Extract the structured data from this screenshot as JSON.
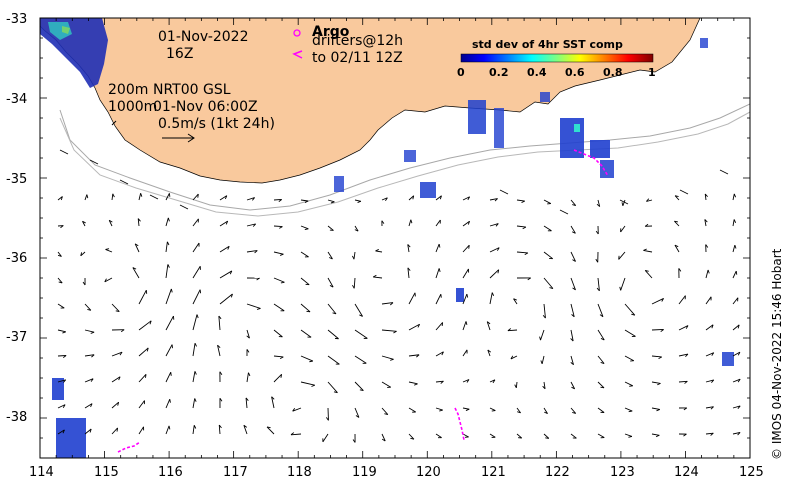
{
  "map": {
    "date": "01-Nov-2022",
    "hour": "16Z",
    "legend_argo_title": "Argo",
    "legend_drifters": "drifters@12h",
    "legend_drifters_to": "to 02/11 12Z",
    "contour_200m": "200m",
    "contour_1000m": "1000m",
    "product": "NRT00 GSL",
    "product_time": "01-Nov 06:00Z",
    "scale_label": "0.5m/s (1kt 24h)",
    "colorbar_title": "std dev of 4hr SST comp",
    "colorbar_ticks": [
      "0",
      "0.2",
      "0.4",
      "0.6",
      "0.8",
      "1"
    ],
    "credit": "© IMOS 04-Nov-2022 15:46 Hobart",
    "lon_ticks": [
      "114",
      "115",
      "116",
      "117",
      "118",
      "119",
      "120",
      "121",
      "122",
      "123",
      "124",
      "125"
    ],
    "lat_ticks": [
      "-33",
      "-34",
      "-35",
      "-36",
      "-37",
      "-38"
    ],
    "colors": {
      "land": "#f9c99d",
      "sst_low": "#1f2fb5",
      "drifter": "#ff00ff",
      "arrow": "#000000"
    }
  }
}
